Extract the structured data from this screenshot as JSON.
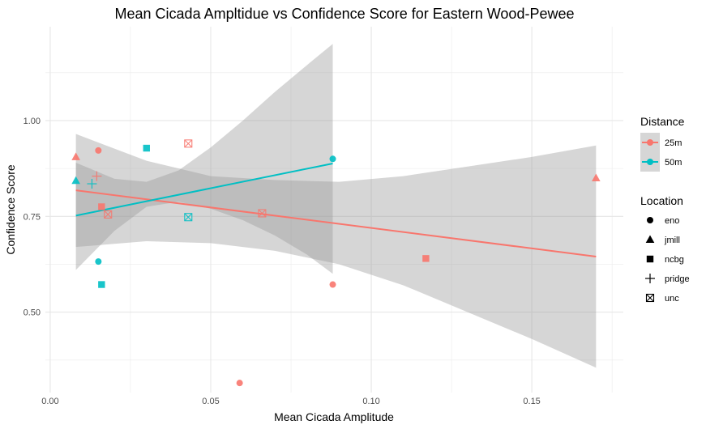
{
  "chart_data": {
    "type": "scatter",
    "title": "Mean Cicada Ampltidue vs Confidence Score for Eastern Wood-Pewee",
    "xlabel": "Mean Cicada Amplitude",
    "ylabel": "Confidence Score",
    "xlim": [
      -0.0015,
      0.1785
    ],
    "ylim": [
      0.29,
      1.245
    ],
    "x_ticks": [
      0.0,
      0.05,
      0.1,
      0.15
    ],
    "x_tick_labels": [
      "0.00",
      "0.05",
      "0.10",
      "0.15"
    ],
    "y_ticks": [
      0.5,
      0.75,
      1.0
    ],
    "y_tick_labels": [
      "0.50",
      "0.75",
      "1.00"
    ],
    "grid": true,
    "legend_position": "right",
    "legends": {
      "color": {
        "title": "Distance",
        "entries": [
          {
            "label": "25m",
            "color": "#F8766D"
          },
          {
            "label": "50m",
            "color": "#00BFC4"
          }
        ]
      },
      "shape": {
        "title": "Location",
        "entries": [
          {
            "label": "eno",
            "shape": "circle"
          },
          {
            "label": "jmill",
            "shape": "triangle"
          },
          {
            "label": "ncbg",
            "shape": "square"
          },
          {
            "label": "pridge",
            "shape": "plus"
          },
          {
            "label": "unc",
            "shape": "boxcross"
          }
        ]
      }
    },
    "series": [
      {
        "name": "25m",
        "color": "#F8766D",
        "points": [
          {
            "x": 0.008,
            "y": 0.905,
            "shape": "triangle"
          },
          {
            "x": 0.015,
            "y": 0.922,
            "shape": "circle"
          },
          {
            "x": 0.016,
            "y": 0.775,
            "shape": "square"
          },
          {
            "x": 0.0145,
            "y": 0.855,
            "shape": "plus"
          },
          {
            "x": 0.018,
            "y": 0.755,
            "shape": "boxcross"
          },
          {
            "x": 0.043,
            "y": 0.94,
            "shape": "boxcross"
          },
          {
            "x": 0.059,
            "y": 0.315,
            "shape": "circle"
          },
          {
            "x": 0.066,
            "y": 0.758,
            "shape": "boxcross"
          },
          {
            "x": 0.088,
            "y": 0.572,
            "shape": "circle"
          },
          {
            "x": 0.117,
            "y": 0.64,
            "shape": "square"
          },
          {
            "x": 0.17,
            "y": 0.85,
            "shape": "triangle"
          }
        ],
        "fit": {
          "x": [
            0.008,
            0.17
          ],
          "y": [
            0.818,
            0.645
          ]
        },
        "band": {
          "x": [
            0.008,
            0.03,
            0.05,
            0.07,
            0.09,
            0.11,
            0.13,
            0.15,
            0.17
          ],
          "lower": [
            0.67,
            0.685,
            0.68,
            0.66,
            0.625,
            0.57,
            0.5,
            0.43,
            0.355
          ],
          "upper": [
            0.965,
            0.895,
            0.855,
            0.845,
            0.84,
            0.855,
            0.88,
            0.905,
            0.935
          ]
        }
      },
      {
        "name": "50m",
        "color": "#00BFC4",
        "points": [
          {
            "x": 0.008,
            "y": 0.843,
            "shape": "triangle"
          },
          {
            "x": 0.013,
            "y": 0.835,
            "shape": "plus"
          },
          {
            "x": 0.015,
            "y": 0.632,
            "shape": "circle"
          },
          {
            "x": 0.016,
            "y": 0.572,
            "shape": "square"
          },
          {
            "x": 0.03,
            "y": 0.928,
            "shape": "square"
          },
          {
            "x": 0.043,
            "y": 0.748,
            "shape": "boxcross"
          },
          {
            "x": 0.088,
            "y": 0.9,
            "shape": "circle"
          }
        ],
        "fit": {
          "x": [
            0.008,
            0.088
          ],
          "y": [
            0.752,
            0.888
          ]
        },
        "band": {
          "x": [
            0.008,
            0.02,
            0.03,
            0.04,
            0.05,
            0.06,
            0.07,
            0.08,
            0.088
          ],
          "lower": [
            0.61,
            0.712,
            0.775,
            0.788,
            0.77,
            0.74,
            0.7,
            0.65,
            0.6
          ],
          "upper": [
            0.89,
            0.848,
            0.84,
            0.87,
            0.93,
            1.0,
            1.075,
            1.145,
            1.2
          ]
        }
      }
    ]
  }
}
